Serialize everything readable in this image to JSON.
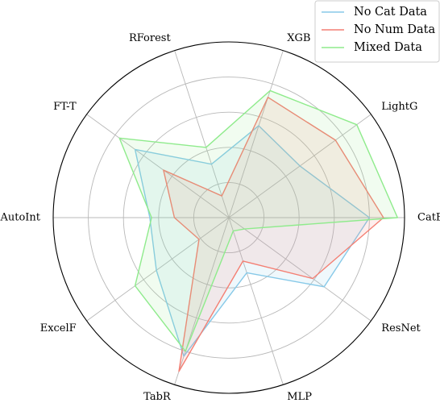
{
  "chart_data": {
    "type": "radar",
    "axes": [
      "CatB",
      "LightG",
      "XGB",
      "RForest",
      "FT-T",
      "AutoInt",
      "ExcelF",
      "TabR",
      "MLP",
      "ResNet"
    ],
    "rlim": [
      0,
      1
    ],
    "grid": true,
    "rings": 5,
    "legend_position": "top-right",
    "series": [
      {
        "name": "No Cat Data",
        "color": "#87c9e8",
        "values": [
          0.8,
          0.5,
          0.55,
          0.32,
          0.66,
          0.45,
          0.51,
          0.83,
          0.33,
          0.67
        ]
      },
      {
        "name": "No Num Data",
        "color": "#f47f73",
        "values": [
          0.88,
          0.75,
          0.72,
          0.13,
          0.46,
          0.31,
          0.21,
          0.92,
          0.26,
          0.59
        ]
      },
      {
        "name": "Mixed Data",
        "color": "#8feb8c",
        "values": [
          0.96,
          0.9,
          0.76,
          0.42,
          0.77,
          0.44,
          0.66,
          0.8,
          0.08,
          0.11
        ]
      }
    ]
  }
}
